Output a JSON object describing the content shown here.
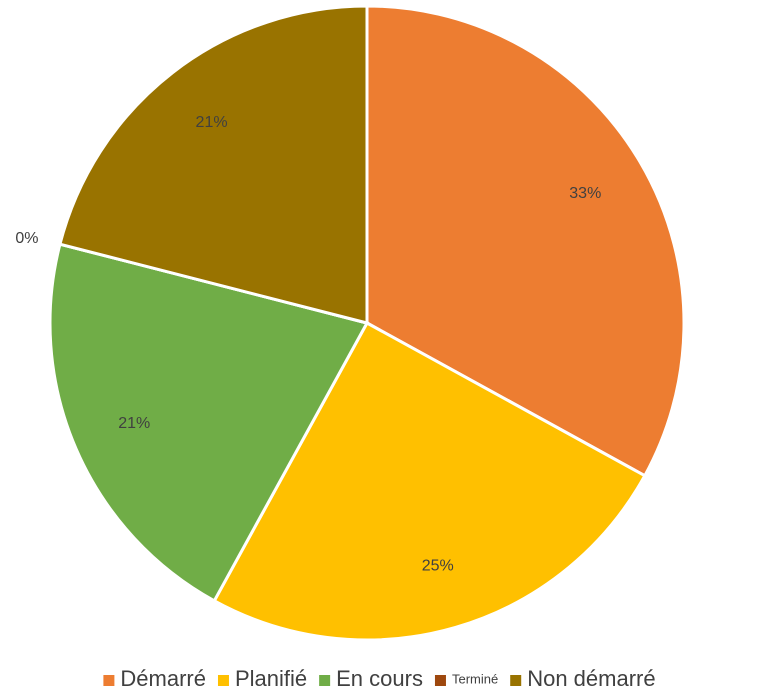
{
  "chart_data": {
    "type": "pie",
    "categories": [
      "Démarré",
      "Planifié",
      "En cours",
      "Terminé",
      "Non démarré"
    ],
    "values": [
      33,
      25,
      21,
      0,
      21
    ],
    "value_labels": [
      "33%",
      "25%",
      "21%",
      "0%",
      "21%"
    ],
    "colors": [
      "#ED7D31",
      "#FFC000",
      "#70AD47",
      "#9E480E",
      "#997300"
    ],
    "legend": "bottom"
  }
}
